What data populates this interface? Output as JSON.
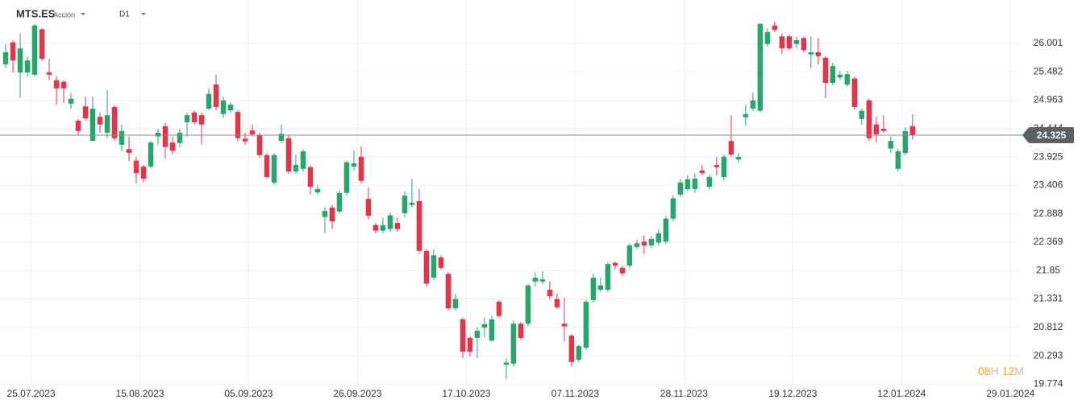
{
  "chart_data": {
    "type": "candlestick",
    "symbol": "MTS.ES",
    "instrument_type": "Acción",
    "timeframe": "D1",
    "timer": {
      "hours": "08",
      "hours_unit": "H",
      "minutes": "12",
      "minutes_unit": "M"
    },
    "up_color": "#26a66b",
    "down_color": "#e5334b",
    "last_price": 24.325,
    "last_price_color": "#5b5f66",
    "ylim": [
      19.736,
      26.795
    ],
    "yticks": [
      19.774,
      20.293,
      20.812,
      21.331,
      21.85,
      22.369,
      22.888,
      23.406,
      23.925,
      24.444,
      24.963,
      25.482,
      26.001
    ],
    "xlim": [
      -0.78,
      139.8
    ],
    "xticks": [
      {
        "value": 3.5,
        "label": "25.07.2023"
      },
      {
        "value": 18.5,
        "label": "15.08.2023"
      },
      {
        "value": 33.5,
        "label": "05.09.2023"
      },
      {
        "value": 48.5,
        "label": "26.09.2023"
      },
      {
        "value": 63.5,
        "label": "17.10.2023"
      },
      {
        "value": 78.5,
        "label": "07.11.2023"
      },
      {
        "value": 93.5,
        "label": "28.11.2023"
      },
      {
        "value": 108.5,
        "label": "19.12.2023"
      },
      {
        "value": 123.5,
        "label": "12.01.2024"
      },
      {
        "value": 138.5,
        "label": "29.01.2024"
      }
    ],
    "grid": true,
    "open": [
      25.62,
      26.02,
      25.47,
      25.47,
      25.43,
      26.26,
      25.47,
      25.33,
      25.3,
      24.9,
      24.59,
      24.85,
      24.22,
      24.66,
      24.37,
      24.84,
      24.15,
      24.07,
      23.86,
      23.75,
      23.75,
      24.3,
      24.49,
      24.19,
      24.18,
      24.56,
      24.74,
      24.69,
      24.81,
      25.25,
      24.71,
      24.78,
      24.75,
      24.26,
      24.41,
      24.33,
      23.96,
      23.46,
      24.22,
      24.27,
      23.66,
      23.71,
      23.74,
      23.28,
      22.83,
      23.0,
      22.93,
      23.27,
      23.75,
      23.93,
      23.16,
      22.68,
      22.58,
      22.61,
      22.72,
      22.9,
      23.05,
      23.12,
      22.21,
      21.72,
      22.09,
      21.79,
      21.16,
      20.96,
      20.62,
      20.62,
      20.81,
      20.57,
      21.28,
      20.13,
      20.15,
      20.88,
      20.88,
      21.65,
      21.65,
      21.5,
      21.33,
      20.88,
      20.66,
      20.22,
      20.44,
      21.31,
      21.5,
      21.5,
      21.99,
      21.9,
      21.94,
      22.28,
      22.38,
      22.31,
      22.36,
      22.38,
      22.8,
      23.24,
      23.34,
      23.34,
      23.68,
      23.38,
      23.78,
      23.56,
      24.22,
      23.88,
      24.65,
      24.81,
      24.77,
      25.99,
      26.33,
      26.13,
      26.13,
      25.99,
      26.1,
      25.8,
      25.84,
      25.74,
      25.28,
      25.38,
      25.25,
      25.36,
      24.62,
      24.96,
      24.52,
      24.44,
      24.08,
      23.71,
      24.0,
      24.49
    ],
    "high": [
      25.99,
      26.06,
      26.18,
      25.77,
      26.36,
      26.28,
      25.72,
      25.4,
      25.33,
      25.1,
      24.62,
      25.03,
      25.03,
      24.74,
      25.15,
      24.88,
      24.52,
      24.3,
      23.93,
      23.78,
      24.22,
      24.44,
      24.55,
      24.3,
      24.44,
      24.74,
      24.78,
      24.74,
      25.18,
      25.43,
      25.03,
      24.93,
      24.78,
      24.37,
      24.52,
      24.37,
      24.0,
      24.0,
      24.52,
      24.33,
      23.97,
      24.07,
      23.78,
      23.41,
      23.0,
      23.05,
      23.31,
      23.86,
      24.04,
      24.12,
      23.37,
      22.72,
      22.82,
      22.91,
      22.82,
      23.3,
      23.53,
      23.34,
      22.24,
      22.24,
      22.13,
      21.82,
      21.43,
      20.99,
      20.65,
      20.81,
      20.99,
      21.02,
      21.31,
      20.25,
      20.94,
      20.91,
      21.6,
      21.82,
      21.84,
      21.65,
      21.43,
      21.35,
      20.69,
      20.5,
      21.32,
      21.79,
      21.72,
      22.0,
      22.02,
      21.94,
      22.35,
      22.41,
      22.49,
      22.49,
      22.61,
      22.85,
      23.22,
      23.53,
      23.59,
      23.63,
      23.78,
      23.61,
      23.93,
      23.97,
      24.69,
      24.0,
      24.88,
      25.1,
      26.36,
      26.28,
      26.4,
      26.18,
      26.16,
      26.13,
      26.13,
      26.13,
      26.1,
      25.77,
      25.65,
      25.5,
      25.5,
      25.4,
      24.81,
      24.99,
      24.66,
      24.69,
      24.3,
      24.07,
      24.47,
      24.71
    ],
    "low": [
      25.55,
      25.47,
      25.0,
      25.4,
      25.4,
      25.69,
      25.33,
      24.88,
      24.91,
      24.81,
      24.32,
      24.59,
      24.22,
      24.37,
      24.27,
      24.22,
      24.03,
      23.85,
      23.44,
      23.46,
      23.72,
      24.15,
      23.9,
      23.97,
      24.11,
      24.3,
      24.52,
      24.15,
      24.78,
      24.78,
      24.64,
      24.74,
      24.21,
      24.15,
      24.3,
      23.91,
      23.53,
      23.42,
      24.18,
      23.62,
      23.62,
      23.66,
      23.24,
      23.24,
      22.53,
      22.61,
      22.9,
      23.22,
      23.68,
      23.44,
      22.78,
      22.53,
      22.53,
      22.56,
      22.56,
      22.82,
      23.0,
      22.16,
      21.56,
      21.68,
      21.87,
      21.12,
      21.12,
      20.25,
      20.28,
      20.25,
      20.62,
      20.55,
      20.99,
      19.86,
      20.1,
      20.59,
      20.84,
      21.56,
      21.6,
      21.32,
      21.15,
      20.55,
      20.1,
      20.18,
      20.4,
      21.26,
      21.46,
      21.46,
      21.87,
      21.75,
      21.9,
      22.24,
      22.16,
      22.26,
      22.31,
      22.34,
      22.75,
      23.19,
      23.3,
      23.27,
      23.59,
      23.33,
      23.59,
      23.49,
      23.93,
      23.81,
      24.49,
      24.77,
      24.74,
      25.94,
      26.21,
      25.81,
      25.88,
      25.91,
      25.84,
      25.55,
      25.62,
      25.0,
      25.24,
      25.33,
      25.21,
      24.79,
      24.52,
      24.22,
      24.19,
      24.37,
      24.0,
      23.66,
      23.96,
      24.25
    ],
    "close": [
      25.84,
      25.69,
      25.91,
      25.69,
      26.33,
      25.72,
      25.43,
      25.18,
      25.18,
      24.99,
      24.4,
      24.63,
      24.81,
      24.52,
      24.69,
      24.27,
      24.4,
      24.0,
      23.63,
      23.53,
      24.19,
      24.37,
      24.11,
      24.04,
      24.37,
      24.69,
      24.56,
      24.52,
      25.08,
      24.84,
      24.96,
      24.88,
      24.27,
      24.21,
      24.34,
      23.96,
      23.56,
      23.96,
      24.35,
      23.66,
      23.78,
      24.03,
      23.38,
      23.34,
      22.94,
      22.75,
      23.27,
      23.83,
      23.81,
      23.49,
      22.85,
      22.58,
      22.68,
      22.86,
      22.61,
      23.22,
      23.09,
      22.21,
      21.61,
      22.13,
      21.9,
      21.16,
      21.33,
      20.37,
      20.37,
      20.75,
      20.87,
      20.96,
      21.02,
      20.17,
      20.88,
      20.62,
      21.58,
      21.72,
      21.69,
      21.38,
      21.18,
      20.83,
      20.18,
      20.47,
      21.28,
      21.72,
      21.58,
      21.97,
      21.94,
      21.8,
      22.31,
      22.35,
      22.31,
      22.43,
      22.53,
      22.8,
      23.17,
      23.46,
      23.52,
      23.53,
      23.63,
      23.56,
      23.74,
      23.93,
      23.97,
      23.93,
      24.71,
      24.96,
      26.36,
      26.21,
      26.25,
      25.91,
      25.91,
      26.06,
      25.88,
      25.84,
      25.77,
      25.28,
      25.59,
      25.43,
      25.44,
      24.84,
      24.77,
      24.27,
      24.34,
      24.4,
      24.22,
      24.03,
      24.4,
      24.325
    ]
  }
}
